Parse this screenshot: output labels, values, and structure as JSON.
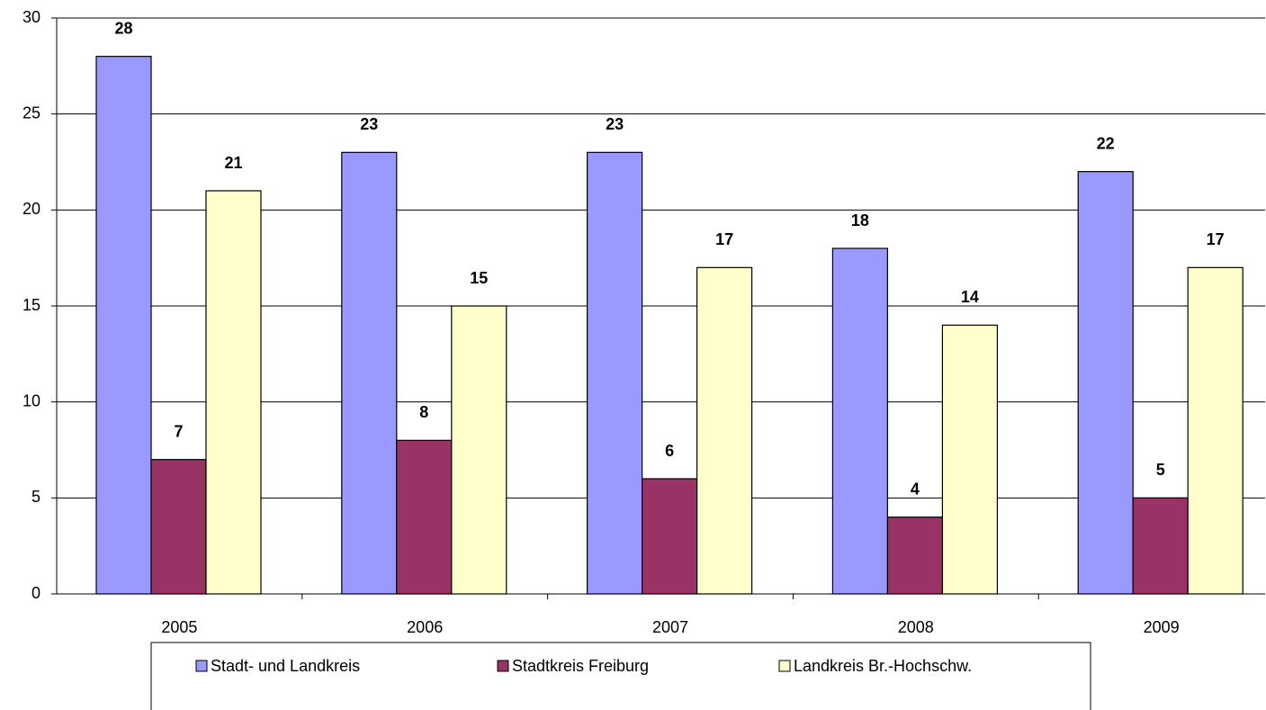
{
  "chart_data": {
    "type": "bar",
    "categories": [
      "2005",
      "2006",
      "2007",
      "2008",
      "2009"
    ],
    "series": [
      {
        "name": "Stadt- und Landkreis",
        "color": "#9999ff",
        "values": [
          28,
          23,
          23,
          18,
          22
        ]
      },
      {
        "name": "Stadtkreis Freiburg",
        "color": "#993366",
        "values": [
          7,
          8,
          6,
          4,
          5
        ]
      },
      {
        "name": "Landkreis Br.-Hochschw.",
        "color": "#ffffcc",
        "values": [
          21,
          15,
          17,
          14,
          17
        ]
      }
    ],
    "ylim": [
      0,
      30
    ],
    "yticks": [
      0,
      5,
      10,
      15,
      20,
      25,
      30
    ],
    "grid": true,
    "legend": "bottom"
  }
}
